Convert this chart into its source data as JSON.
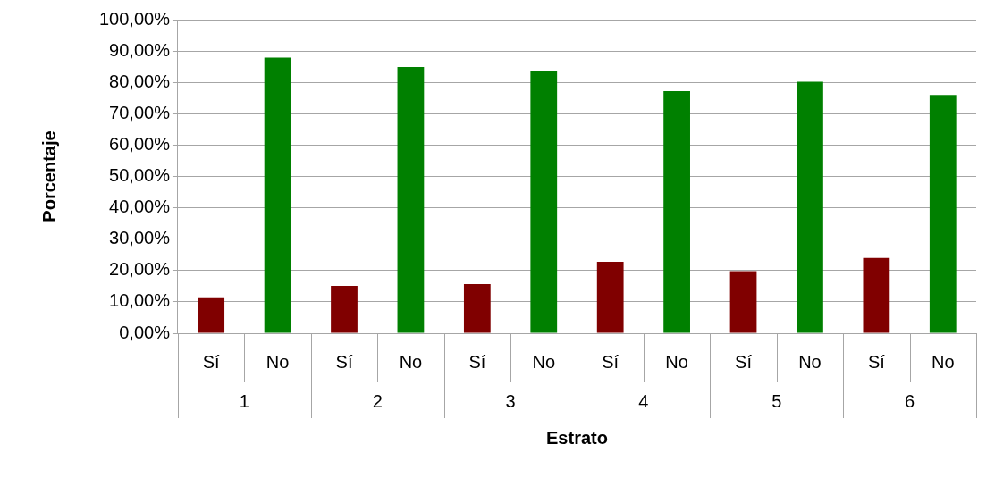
{
  "chart_data": {
    "type": "bar",
    "xlabel": "Estrato",
    "ylabel": "Porcentaje",
    "categories": [
      "1",
      "2",
      "3",
      "4",
      "5",
      "6"
    ],
    "series": [
      {
        "name": "Sí",
        "color": "#800000",
        "values": [
          11.5,
          15.1,
          15.7,
          22.8,
          19.8,
          24
        ]
      },
      {
        "name": "No",
        "color": "#008000",
        "values": [
          87.9,
          84.9,
          83.7,
          77.2,
          80.2,
          76
        ]
      }
    ],
    "ylim": [
      0,
      100
    ],
    "yticks": [
      {
        "value": 0,
        "label": "0,00%"
      },
      {
        "value": 10,
        "label": "10,00%"
      },
      {
        "value": 20,
        "label": "20,00%"
      },
      {
        "value": 30,
        "label": "30,00%"
      },
      {
        "value": 40,
        "label": "40,00%"
      },
      {
        "value": 50,
        "label": "50,00%"
      },
      {
        "value": 60,
        "label": "60,00%"
      },
      {
        "value": 70,
        "label": "70,00%"
      },
      {
        "value": 80,
        "label": "80,00%"
      },
      {
        "value": 90,
        "label": "90,00%"
      },
      {
        "value": 100,
        "label": "100,00%"
      }
    ],
    "grid": "y",
    "legend": false
  }
}
